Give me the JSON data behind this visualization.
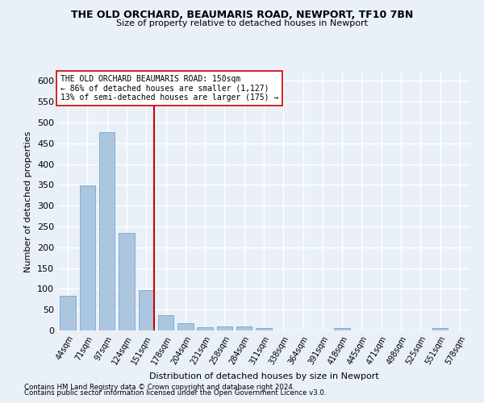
{
  "title": "THE OLD ORCHARD, BEAUMARIS ROAD, NEWPORT, TF10 7BN",
  "subtitle": "Size of property relative to detached houses in Newport",
  "xlabel": "Distribution of detached houses by size in Newport",
  "ylabel": "Number of detached properties",
  "categories": [
    "44sqm",
    "71sqm",
    "97sqm",
    "124sqm",
    "151sqm",
    "178sqm",
    "204sqm",
    "231sqm",
    "258sqm",
    "284sqm",
    "311sqm",
    "338sqm",
    "364sqm",
    "391sqm",
    "418sqm",
    "445sqm",
    "471sqm",
    "498sqm",
    "525sqm",
    "551sqm",
    "578sqm"
  ],
  "values": [
    83,
    349,
    476,
    235,
    96,
    37,
    17,
    8,
    9,
    9,
    5,
    0,
    0,
    0,
    6,
    0,
    0,
    0,
    0,
    6,
    0
  ],
  "bar_color": "#adc6e0",
  "bar_edge_color": "#6699cc",
  "highlight_index": 4,
  "highlight_color": "#cc0000",
  "annotation_lines": [
    "THE OLD ORCHARD BEAUMARIS ROAD: 150sqm",
    "← 86% of detached houses are smaller (1,127)",
    "13% of semi-detached houses are larger (175) →"
  ],
  "footnote1": "Contains HM Land Registry data © Crown copyright and database right 2024.",
  "footnote2": "Contains public sector information licensed under the Open Government Licence v3.0.",
  "bg_color": "#eaf0f8",
  "grid_color": "#ffffff",
  "ylim": [
    0,
    620
  ],
  "yticks": [
    0,
    50,
    100,
    150,
    200,
    250,
    300,
    350,
    400,
    450,
    500,
    550,
    600
  ]
}
